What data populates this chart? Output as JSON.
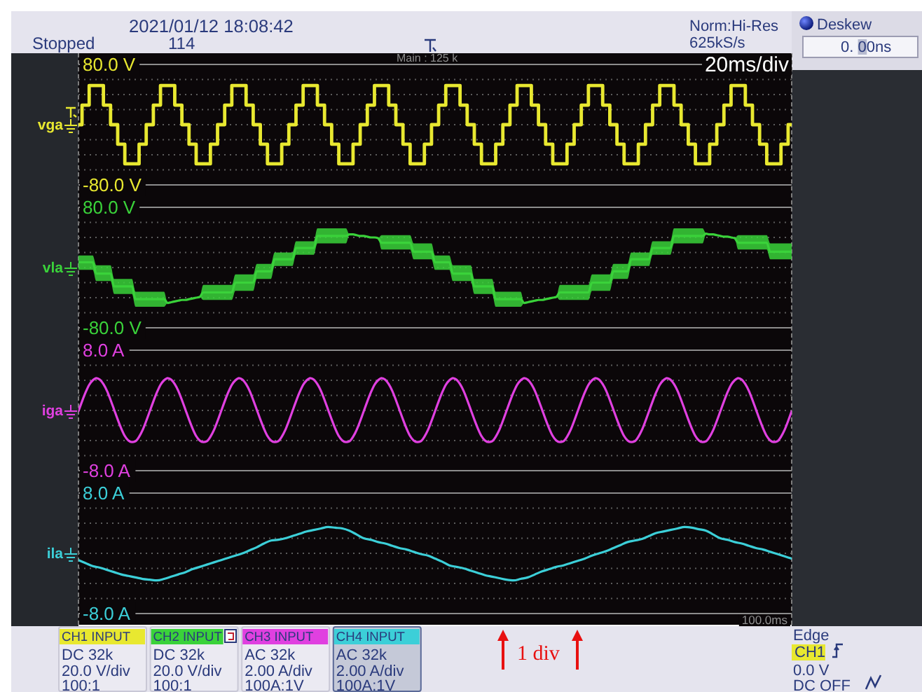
{
  "chart_data": [
    {
      "type": "step",
      "categories": [
        null,
        null,
        null,
        null,
        null,
        null,
        null,
        null,
        null,
        null,
        null,
        null,
        null,
        null,
        null,
        null,
        null,
        null,
        null,
        null,
        null,
        null,
        null,
        null,
        null,
        null,
        null,
        null,
        null,
        null,
        null,
        null,
        null,
        null,
        null,
        null,
        null,
        null,
        null,
        null,
        null,
        null,
        null,
        null,
        null,
        null,
        null,
        null,
        null,
        null,
        null,
        null,
        null,
        null,
        null,
        null,
        null,
        null,
        null,
        null,
        null,
        null,
        null,
        null,
        null,
        null,
        null,
        null,
        null,
        null,
        null,
        null,
        null,
        null,
        null,
        null,
        null,
        null,
        null,
        null,
        null,
        null,
        null,
        null,
        null,
        null,
        null,
        null,
        null,
        null,
        null,
        null,
        null,
        null,
        null,
        null,
        null,
        null,
        null,
        null,
        null,
        null,
        null,
        null,
        null,
        null,
        null,
        null,
        null,
        null,
        null,
        null,
        null,
        null,
        null,
        null,
        null,
        null,
        null,
        null,
        null,
        null,
        null,
        null,
        null,
        null,
        null,
        null,
        null,
        null,
        null,
        null,
        null,
        null,
        null,
        null,
        null,
        null,
        null,
        null,
        null,
        null,
        null,
        null,
        null,
        null,
        null,
        null,
        null,
        null,
        null,
        null,
        null,
        null,
        null,
        null,
        null,
        null,
        null,
        null,
        null,
        null,
        null,
        null,
        null,
        null,
        null,
        null,
        null,
        null,
        null,
        null,
        null,
        null,
        null,
        null,
        null,
        null,
        null,
        null,
        null,
        null,
        null,
        null,
        null,
        null,
        null,
        null,
        null,
        null,
        null,
        null,
        null,
        null,
        null,
        null,
        null,
        null,
        null,
        null,
        null
      ],
      "series": [
        {
          "name": "vga",
          "color": "#e8e830",
          "values": [
            0,
            26,
            26,
            52,
            52,
            52,
            52,
            26,
            26,
            0,
            0,
            -26,
            -26,
            -52,
            -52,
            -52,
            -52,
            -26,
            -26,
            0,
            0,
            26,
            26,
            52,
            52,
            52,
            52,
            26,
            26,
            0,
            0,
            -26,
            -26,
            -52,
            -52,
            -52,
            -52,
            -26,
            -26,
            0,
            0,
            26,
            26,
            52,
            52,
            52,
            52,
            26,
            26,
            0,
            0,
            -26,
            -26,
            -52,
            -52,
            -52,
            -52,
            -26,
            -26,
            0,
            0,
            26,
            26,
            52,
            52,
            52,
            52,
            26,
            26,
            0,
            0,
            -26,
            -26,
            -52,
            -52,
            -52,
            -52,
            -26,
            -26,
            0,
            0,
            26,
            26,
            52,
            52,
            52,
            52,
            26,
            26,
            0,
            0,
            -26,
            -26,
            -52,
            -52,
            -52,
            -52,
            -26,
            -26,
            0,
            0,
            26,
            26,
            52,
            52,
            52,
            52,
            26,
            26,
            0,
            0,
            -26,
            -26,
            -52,
            -52,
            -52,
            -52,
            -26,
            -26,
            0,
            0,
            26,
            26,
            52,
            52,
            52,
            52,
            26,
            26,
            0,
            0,
            -26,
            -26,
            -52,
            -52,
            -52,
            -52,
            -26,
            -26,
            0,
            0,
            26,
            26,
            52,
            52,
            52,
            52,
            26,
            26,
            0,
            0,
            -26,
            -26,
            -52,
            -52,
            -52,
            -52,
            -26,
            -26,
            0,
            0,
            26,
            26,
            52,
            52,
            52,
            52,
            26,
            26,
            0,
            0,
            -26,
            -26,
            -52,
            -52,
            -52,
            -52,
            -26,
            -26,
            0,
            0,
            26,
            26,
            52,
            52,
            52,
            52,
            26,
            26,
            0,
            0,
            -26,
            -26,
            -52,
            -52,
            -52,
            -52,
            -26,
            -26,
            0,
            0
          ]
        }
      ],
      "ylim": [
        -80,
        80
      ],
      "yticks": [
        {
          "value": -80,
          "label": "-80.0 V"
        },
        {
          "value": -60,
          "label": null
        },
        {
          "value": -40,
          "label": null
        },
        {
          "value": -20,
          "label": null
        },
        {
          "value": 0,
          "label": null
        },
        {
          "value": 20,
          "label": null
        },
        {
          "value": 40,
          "label": null
        },
        {
          "value": 60,
          "label": null
        },
        {
          "value": 80,
          "label": "80.0 V"
        }
      ],
      "grid": "y",
      "tick_labels": "y",
      "annotations": [
        "CH1 INPUT",
        "DC 32k",
        "20.0 V/div",
        "100:1",
        "2021/01/12 18:08:42",
        "Stopped",
        "114",
        "Norm:Hi-Res",
        "625kS/s",
        "Main : 125 k",
        "20ms/div",
        "Deskew",
        "0. 00ns",
        "1 div",
        "Edge",
        "CH1",
        "0.0 V",
        "DC OFF"
      ]
    },
    {
      "type": "line",
      "categories": [
        null,
        null,
        null,
        null,
        null,
        null,
        null,
        null,
        null,
        null,
        null,
        null,
        null,
        null,
        null,
        null,
        null,
        null,
        null,
        null,
        null,
        null,
        null,
        null,
        null,
        null,
        null,
        null,
        null,
        null,
        null,
        null,
        null,
        null,
        null,
        null,
        null,
        null,
        null,
        null,
        null,
        null,
        null,
        null,
        null,
        null,
        null,
        null,
        null,
        null,
        null,
        null,
        null,
        null,
        null,
        null,
        null,
        null,
        null,
        null,
        null,
        null,
        null,
        null,
        null,
        null,
        null,
        null,
        null,
        null,
        null,
        null,
        null,
        null,
        null,
        null,
        null,
        null,
        null,
        null,
        null,
        null,
        null,
        null,
        null,
        null,
        null,
        null,
        null,
        null,
        null,
        null,
        null,
        null,
        null,
        null,
        null,
        null,
        null,
        null,
        null,
        null,
        null,
        null,
        null,
        null,
        null,
        null,
        null,
        null,
        null,
        null,
        null,
        null,
        null,
        null,
        null,
        null,
        null,
        null,
        null,
        null,
        null,
        null,
        null,
        null,
        null,
        null,
        null,
        null,
        null,
        null,
        null,
        null,
        null,
        null,
        null,
        null,
        null,
        null,
        null,
        null,
        null,
        null,
        null,
        null,
        null,
        null,
        null,
        null,
        null,
        null,
        null,
        null,
        null,
        null,
        null,
        null,
        null,
        null,
        null,
        null,
        null,
        null,
        null,
        null,
        null,
        null,
        null,
        null,
        null,
        null,
        null,
        null,
        null,
        null,
        null,
        null,
        null,
        null,
        null,
        null,
        null,
        null,
        null,
        null,
        null,
        null,
        null,
        null,
        null,
        null,
        null,
        null,
        null,
        null,
        null,
        null,
        null,
        null,
        null
      ],
      "series": [
        {
          "name": "vla",
          "color": "#3ad23a",
          "values": [
            7,
            7,
            7,
            7,
            7,
            -8,
            -8,
            -8,
            -8,
            -8,
            -25,
            -25,
            -25,
            -25,
            -25,
            -25,
            -42,
            -42,
            -42,
            -42,
            -42,
            -42,
            -42,
            -42,
            -42,
            -47,
            -46,
            -45,
            -44,
            -43,
            -43,
            -42,
            -41,
            -40,
            -39,
            -33,
            -33,
            -33,
            -33,
            -33,
            -33,
            -33,
            -33,
            -33,
            -20,
            -20,
            -20,
            -20,
            -20,
            -20,
            -5,
            -5,
            -5,
            -5,
            -5,
            11,
            11,
            11,
            11,
            11,
            11,
            26,
            26,
            26,
            26,
            26,
            26,
            42,
            42,
            42,
            42,
            42,
            42,
            42,
            42,
            42,
            44,
            44,
            43,
            42,
            42,
            41,
            40,
            40,
            39,
            33,
            33,
            33,
            33,
            33,
            33,
            33,
            33,
            33,
            21,
            21,
            21,
            21,
            21,
            21,
            7,
            7,
            7,
            7,
            7,
            -8,
            -8,
            -8,
            -8,
            -8,
            -8,
            -25,
            -25,
            -25,
            -25,
            -25,
            -25,
            -42,
            -42,
            -42,
            -42,
            -42,
            -42,
            -42,
            -42,
            -47,
            -46,
            -45,
            -44,
            -43,
            -43,
            -42,
            -41,
            -40,
            -39,
            -33,
            -33,
            -33,
            -33,
            -33,
            -33,
            -33,
            -33,
            -33,
            -20,
            -20,
            -20,
            -20,
            -20,
            -20,
            -5,
            -5,
            -5,
            -5,
            -5,
            11,
            11,
            11,
            11,
            11,
            11,
            26,
            26,
            26,
            26,
            26,
            26,
            42,
            42,
            42,
            42,
            42,
            42,
            42,
            42,
            42,
            45,
            44,
            44,
            43,
            42,
            41,
            41,
            40,
            39,
            33,
            33,
            33,
            33,
            33,
            33,
            33,
            33,
            33,
            21,
            21,
            21,
            21,
            21,
            21,
            21
          ],
          "lower": [
            -3,
            -3,
            -3,
            -3,
            -3,
            -18,
            -18,
            -18,
            -18,
            -18,
            -35,
            -35,
            -35,
            -35,
            -35,
            -35,
            -52,
            -52,
            -52,
            -52,
            -52,
            -52,
            -52,
            -52,
            -52,
            -47,
            -46,
            -45,
            -44,
            -43,
            -43,
            -42,
            -41,
            -40,
            -39,
            -43,
            -43,
            -43,
            -43,
            -43,
            -43,
            -43,
            -43,
            -43,
            -31,
            -31,
            -31,
            -31,
            -31,
            -31,
            -15,
            -15,
            -15,
            -15,
            -15,
            2,
            2,
            2,
            2,
            2,
            2,
            17,
            17,
            17,
            17,
            17,
            17,
            32,
            32,
            32,
            32,
            32,
            32,
            32,
            32,
            32,
            44,
            44,
            43,
            42,
            42,
            41,
            40,
            40,
            39,
            24,
            24,
            24,
            24,
            24,
            24,
            24,
            24,
            24,
            11,
            11,
            11,
            11,
            11,
            11,
            -3,
            -3,
            -3,
            -3,
            -3,
            -18,
            -18,
            -18,
            -18,
            -18,
            -18,
            -35,
            -35,
            -35,
            -35,
            -35,
            -35,
            -52,
            -52,
            -52,
            -52,
            -52,
            -52,
            -52,
            -52,
            -47,
            -46,
            -45,
            -44,
            -43,
            -43,
            -42,
            -41,
            -40,
            -39,
            -43,
            -43,
            -43,
            -43,
            -43,
            -43,
            -43,
            -43,
            -43,
            -31,
            -31,
            -31,
            -31,
            -31,
            -31,
            -15,
            -15,
            -15,
            -15,
            -15,
            2,
            2,
            2,
            2,
            2,
            2,
            17,
            17,
            17,
            17,
            17,
            17,
            32,
            32,
            32,
            32,
            32,
            32,
            32,
            32,
            32,
            45,
            44,
            44,
            43,
            42,
            41,
            41,
            40,
            39,
            24,
            24,
            24,
            24,
            24,
            24,
            24,
            24,
            24,
            11,
            11,
            11,
            11,
            11,
            11,
            11
          ],
          "upper": [
            16,
            16,
            16,
            16,
            16,
            3,
            3,
            3,
            3,
            3,
            -15,
            -15,
            -15,
            -15,
            -15,
            -15,
            -32,
            -32,
            -32,
            -32,
            -32,
            -32,
            -32,
            -32,
            -32,
            -47,
            -46,
            -45,
            -44,
            -43,
            -43,
            -42,
            -41,
            -40,
            -39,
            -23,
            -23,
            -23,
            -23,
            -23,
            -23,
            -23,
            -23,
            -23,
            -9,
            -9,
            -9,
            -9,
            -9,
            -9,
            5,
            5,
            5,
            5,
            5,
            20,
            20,
            20,
            20,
            20,
            20,
            35,
            35,
            35,
            35,
            35,
            35,
            52,
            52,
            52,
            52,
            52,
            52,
            52,
            52,
            52,
            44,
            44,
            43,
            42,
            42,
            41,
            40,
            40,
            39,
            43,
            43,
            43,
            43,
            43,
            43,
            43,
            43,
            43,
            32,
            32,
            32,
            32,
            32,
            32,
            16,
            16,
            16,
            16,
            16,
            3,
            3,
            3,
            3,
            3,
            3,
            -15,
            -15,
            -15,
            -15,
            -15,
            -15,
            -32,
            -32,
            -32,
            -32,
            -32,
            -32,
            -32,
            -32,
            -47,
            -46,
            -45,
            -44,
            -43,
            -43,
            -42,
            -41,
            -40,
            -39,
            -23,
            -23,
            -23,
            -23,
            -23,
            -23,
            -23,
            -23,
            -23,
            -9,
            -9,
            -9,
            -9,
            -9,
            -9,
            5,
            5,
            5,
            5,
            5,
            20,
            20,
            20,
            20,
            20,
            20,
            35,
            35,
            35,
            35,
            35,
            35,
            52,
            52,
            52,
            52,
            52,
            52,
            52,
            52,
            52,
            45,
            44,
            44,
            43,
            42,
            41,
            41,
            40,
            39,
            43,
            43,
            43,
            43,
            43,
            43,
            43,
            43,
            43,
            32,
            32,
            32,
            32,
            32,
            32,
            32
          ]
        }
      ],
      "ylim": [
        -80,
        80
      ],
      "yticks": [
        {
          "value": -80,
          "label": "-80.0 V"
        },
        {
          "value": -60,
          "label": null
        },
        {
          "value": -40,
          "label": null
        },
        {
          "value": -20,
          "label": null
        },
        {
          "value": 0,
          "label": null
        },
        {
          "value": 20,
          "label": null
        },
        {
          "value": 40,
          "label": null
        },
        {
          "value": 60,
          "label": null
        },
        {
          "value": 80,
          "label": "80.0 V"
        }
      ],
      "grid": "y",
      "tick_labels": "y",
      "annotations": [
        "CH2 INPUT",
        "DC 32k",
        "20.0 V/div",
        "100:1"
      ]
    },
    {
      "type": "line",
      "categories": [
        null,
        null,
        null,
        null,
        null,
        null,
        null,
        null,
        null,
        null,
        null,
        null,
        null,
        null,
        null,
        null,
        null,
        null,
        null,
        null,
        null,
        null,
        null,
        null,
        null,
        null,
        null,
        null,
        null,
        null,
        null,
        null,
        null,
        null,
        null,
        null,
        null,
        null,
        null,
        null,
        null,
        null,
        null,
        null,
        null,
        null,
        null,
        null,
        null,
        null,
        null,
        null,
        null,
        null,
        null,
        null,
        null,
        null,
        null,
        null,
        null,
        null,
        null,
        null,
        null,
        null,
        null,
        null,
        null,
        null,
        null,
        null,
        null,
        null,
        null,
        null,
        null,
        null,
        null,
        null,
        null,
        null,
        null,
        null,
        null,
        null,
        null,
        null,
        null,
        null,
        null,
        null,
        null,
        null,
        null,
        null,
        null,
        null,
        null,
        null,
        null,
        null,
        null,
        null,
        null,
        null,
        null,
        null,
        null,
        null,
        null,
        null,
        null,
        null,
        null,
        null,
        null,
        null,
        null,
        null,
        null,
        null,
        null,
        null,
        null,
        null,
        null,
        null,
        null,
        null,
        null,
        null,
        null,
        null,
        null,
        null,
        null,
        null,
        null,
        null,
        null,
        null,
        null,
        null,
        null,
        null,
        null,
        null,
        null,
        null,
        null,
        null,
        null,
        null,
        null,
        null,
        null,
        null,
        null,
        null,
        null,
        null,
        null,
        null,
        null,
        null,
        null,
        null,
        null,
        null,
        null,
        null,
        null,
        null,
        null,
        null,
        null,
        null,
        null,
        null,
        null,
        null,
        null,
        null,
        null,
        null,
        null,
        null,
        null,
        null,
        null,
        null,
        null,
        null,
        null,
        null,
        null,
        null,
        null,
        null,
        null
      ],
      "series": [
        {
          "name": "iga",
          "color": "#e040e0",
          "values": [
            -0.1,
            1.2,
            2.4,
            3.4,
            4,
            4.3,
            4.1,
            3.5,
            2.6,
            1.4,
            0.1,
            -1.2,
            -2.4,
            -3.4,
            -4,
            -4.2,
            -4.1,
            -3.5,
            -2.6,
            -1.4,
            -0.1,
            1.2,
            2.4,
            3.4,
            4,
            4.3,
            4.1,
            3.5,
            2.6,
            1.4,
            0.1,
            -1.2,
            -2.4,
            -3.4,
            -4,
            -4.2,
            -4.1,
            -3.5,
            -2.6,
            -1.4,
            -0.1,
            1.2,
            2.4,
            3.4,
            4,
            4.3,
            4.1,
            3.5,
            2.6,
            1.4,
            0.1,
            -1.2,
            -2.4,
            -3.4,
            -4,
            -4.2,
            -4.1,
            -3.5,
            -2.6,
            -1.4,
            -0.1,
            1.2,
            2.4,
            3.4,
            4,
            4.3,
            4.1,
            3.5,
            2.6,
            1.4,
            0.1,
            -1.2,
            -2.4,
            -3.4,
            -4,
            -4.2,
            -4.1,
            -3.5,
            -2.6,
            -1.4,
            -0.1,
            1.2,
            2.4,
            3.4,
            4,
            4.3,
            4.1,
            3.5,
            2.6,
            1.4,
            0.1,
            -1.2,
            -2.4,
            -3.4,
            -4,
            -4.2,
            -4.1,
            -3.5,
            -2.6,
            -1.4,
            -0.1,
            1.2,
            2.4,
            3.4,
            4,
            4.3,
            4.1,
            3.5,
            2.6,
            1.4,
            0.1,
            -1.2,
            -2.4,
            -3.4,
            -4,
            -4.2,
            -4.1,
            -3.5,
            -2.6,
            -1.4,
            -0.1,
            1.2,
            2.4,
            3.4,
            4,
            4.3,
            4.1,
            3.5,
            2.6,
            1.4,
            0.1,
            -1.2,
            -2.4,
            -3.4,
            -4,
            -4.2,
            -4.1,
            -3.5,
            -2.6,
            -1.4,
            -0.1,
            1.2,
            2.4,
            3.4,
            4,
            4.3,
            4.1,
            3.5,
            2.6,
            1.4,
            0.1,
            -1.2,
            -2.4,
            -3.4,
            -4,
            -4.2,
            -4.1,
            -3.5,
            -2.6,
            -1.4,
            -0.1,
            1.2,
            2.4,
            3.4,
            4,
            4.3,
            4.1,
            3.5,
            2.6,
            1.4,
            0.1,
            -1.2,
            -2.4,
            -3.4,
            -4,
            -4.2,
            -4.1,
            -3.5,
            -2.6,
            -1.4,
            -0.1,
            1.2,
            2.4,
            3.4,
            4,
            4.3,
            4.1,
            3.5,
            2.6,
            1.4,
            0.1,
            -1.2,
            -2.4,
            -3.4,
            -4,
            -4.2,
            -4.1,
            -3.5,
            -2.6,
            -1.4,
            -0.1
          ]
        }
      ],
      "ylim": [
        -8,
        8
      ],
      "yticks": [
        {
          "value": -8,
          "label": "-8.0 A"
        },
        {
          "value": -6,
          "label": null
        },
        {
          "value": -4,
          "label": null
        },
        {
          "value": -2,
          "label": null
        },
        {
          "value": 0,
          "label": null
        },
        {
          "value": 2,
          "label": null
        },
        {
          "value": 4,
          "label": null
        },
        {
          "value": 6,
          "label": null
        },
        {
          "value": 8,
          "label": "8.0 A"
        }
      ],
      "grid": "y",
      "tick_labels": "y",
      "annotations": [
        "CH3 INPUT",
        "AC 32k",
        "2.00 A/div",
        "100A:1V"
      ]
    },
    {
      "type": "line",
      "categories": [
        null,
        null,
        null,
        null,
        null,
        null,
        null,
        null,
        null,
        null,
        null,
        null,
        null,
        null,
        null,
        null,
        null,
        null,
        null,
        null,
        null,
        null,
        null,
        null,
        null,
        null,
        null,
        null,
        null,
        null,
        null,
        null,
        null,
        null,
        null,
        null,
        null,
        null,
        null,
        null,
        null,
        null,
        null,
        null,
        null,
        null,
        null,
        null,
        null,
        null,
        null,
        null,
        null,
        null,
        null,
        null,
        null,
        null,
        null,
        null,
        null,
        null,
        null,
        null,
        null,
        null,
        null,
        null,
        null,
        null,
        null,
        null,
        null,
        null,
        null,
        null,
        null,
        null,
        null,
        null,
        null,
        null,
        null,
        null,
        null,
        null,
        null,
        null,
        null,
        null,
        null,
        null,
        null,
        null,
        null,
        null,
        null,
        null,
        null,
        null,
        null
      ],
      "series": [
        {
          "name": "ila",
          "color": "#3ccfd8",
          "values": [
            -0.9,
            -1.3,
            -1.7,
            -1.9,
            -2.2,
            -2.5,
            -2.8,
            -3,
            -3.2,
            -3.4,
            -3.5,
            -3.6,
            -3.4,
            -3.1,
            -2.8,
            -2.5,
            -2.1,
            -1.8,
            -1.5,
            -1.2,
            -0.9,
            -0.6,
            -0.3,
            0,
            0.4,
            0.8,
            1.3,
            1.7,
            1.8,
            2,
            2.3,
            2.6,
            2.9,
            3.1,
            3.3,
            3.5,
            3.4,
            3.3,
            3,
            2.5,
            2,
            1.8,
            1.5,
            1.3,
            1,
            0.7,
            0.5,
            0.2,
            -0.1,
            -0.3,
            -0.7,
            -1.1,
            -1.6,
            -1.8,
            -2,
            -2.3,
            -2.6,
            -2.9,
            -3.1,
            -3.3,
            -3.5,
            -3.6,
            -3.4,
            -3.2,
            -2.8,
            -2.4,
            -2.1,
            -1.8,
            -1.6,
            -1.3,
            -1,
            -0.7,
            -0.3,
            0,
            0.3,
            0.7,
            1.1,
            1.5,
            1.7,
            1.9,
            2.3,
            2.7,
            2.9,
            3.1,
            3.3,
            3.5,
            3.4,
            3.2,
            3,
            2.5,
            2,
            1.8,
            1.5,
            1.3,
            1,
            0.7,
            0.5,
            0.2,
            -0.1,
            -0.4,
            -0.7
          ]
        }
      ],
      "ylim": [
        -8,
        8
      ],
      "yticks": [
        {
          "value": -8,
          "label": "-8.0 A"
        },
        {
          "value": -6,
          "label": null
        },
        {
          "value": -4,
          "label": null
        },
        {
          "value": -2,
          "label": null
        },
        {
          "value": 0,
          "label": null
        },
        {
          "value": 2,
          "label": null
        },
        {
          "value": 4,
          "label": null
        },
        {
          "value": 6,
          "label": null
        },
        {
          "value": 8,
          "label": "8.0 A"
        }
      ],
      "grid": "y",
      "tick_labels": "y",
      "annotations": [
        "CH4 INPUT",
        "AC 32k",
        "2.00 A/div",
        "100A:1V",
        "100.0ms"
      ]
    }
  ]
}
